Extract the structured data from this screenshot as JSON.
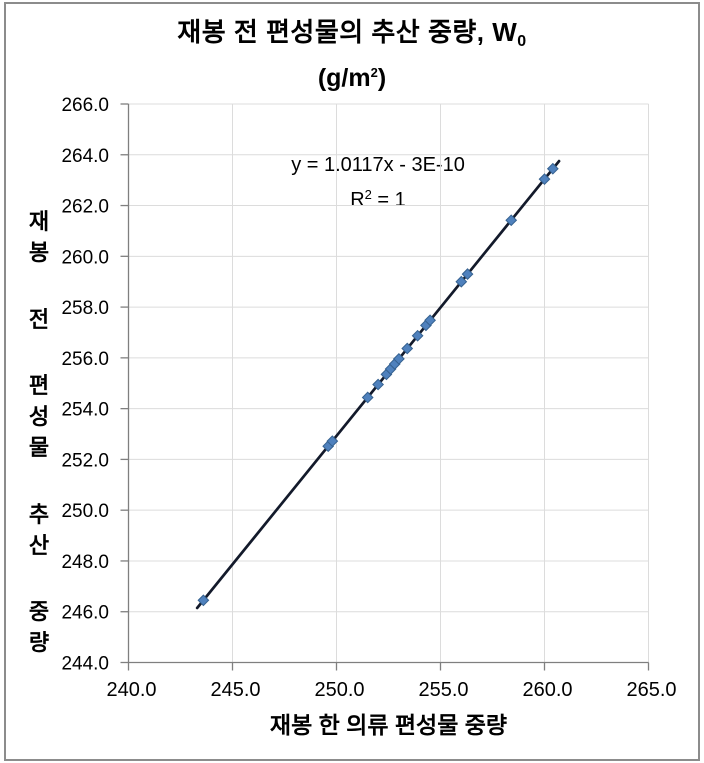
{
  "title": {
    "line1_main": "재봉 전 편성물의 추산 중량, W",
    "line1_sub": "0",
    "line2_main": "(g/m",
    "line2_sup": "2",
    "line2_close": ")"
  },
  "annotation": {
    "equation": "y = 1.0117x - 3E-10",
    "r2_main": "R",
    "r2_sup": "2",
    "r2_rest": " = 1"
  },
  "axes": {
    "x_label": "재봉 한 의류 편성물 중량",
    "y_label_words": [
      "재봉",
      "전",
      "편성물",
      "추산",
      "중량"
    ],
    "x_tick_labels": [
      "240.0",
      "245.0",
      "250.0",
      "255.0",
      "260.0",
      "265.0"
    ],
    "y_tick_labels": [
      "244.0",
      "246.0",
      "248.0",
      "250.0",
      "252.0",
      "254.0",
      "256.0",
      "258.0",
      "260.0",
      "262.0",
      "264.0",
      "266.0"
    ]
  },
  "chart_data": {
    "type": "scatter",
    "title": "재봉 전 편성물의 추산 중량, W0 (g/m2)",
    "xlabel": "재봉 한 의류 편성물 중량",
    "ylabel": "재봉 전 편성물 추산 중량",
    "xlim": [
      240.0,
      265.0
    ],
    "ylim": [
      244.0,
      266.0
    ],
    "xticks": [
      240.0,
      245.0,
      250.0,
      255.0,
      260.0,
      265.0
    ],
    "yticks": [
      244.0,
      246.0,
      248.0,
      250.0,
      252.0,
      254.0,
      256.0,
      258.0,
      260.0,
      262.0,
      264.0,
      266.0
    ],
    "grid": true,
    "legend": "none",
    "points": [
      [
        243.6,
        246.45
      ],
      [
        249.6,
        252.52
      ],
      [
        249.8,
        252.72
      ],
      [
        251.5,
        254.44
      ],
      [
        252.0,
        254.95
      ],
      [
        252.4,
        255.35
      ],
      [
        252.6,
        255.56
      ],
      [
        252.8,
        255.76
      ],
      [
        253.0,
        255.96
      ],
      [
        253.4,
        256.37
      ],
      [
        253.9,
        256.87
      ],
      [
        254.3,
        257.28
      ],
      [
        254.5,
        257.48
      ],
      [
        256.0,
        259.0
      ],
      [
        256.3,
        259.3
      ],
      [
        258.4,
        261.42
      ],
      [
        260.0,
        263.04
      ],
      [
        260.4,
        263.45
      ]
    ],
    "trendline": {
      "equation": "y = 1.0117x - 3E-10",
      "slope": 1.0117,
      "intercept": -3e-10,
      "r_squared": 1,
      "x_start": 243.3,
      "x_end": 260.7
    },
    "marker": {
      "shape": "diamond",
      "color": "#4f81bd"
    }
  },
  "colors": {
    "grid": "#dcdcdc",
    "axis": "#7f7f7f",
    "frame": "#8c8c8c",
    "marker_fill": "#4f81bd",
    "marker_stroke": "#35618f",
    "trend_line": "#131a2b",
    "text": "#000000"
  }
}
